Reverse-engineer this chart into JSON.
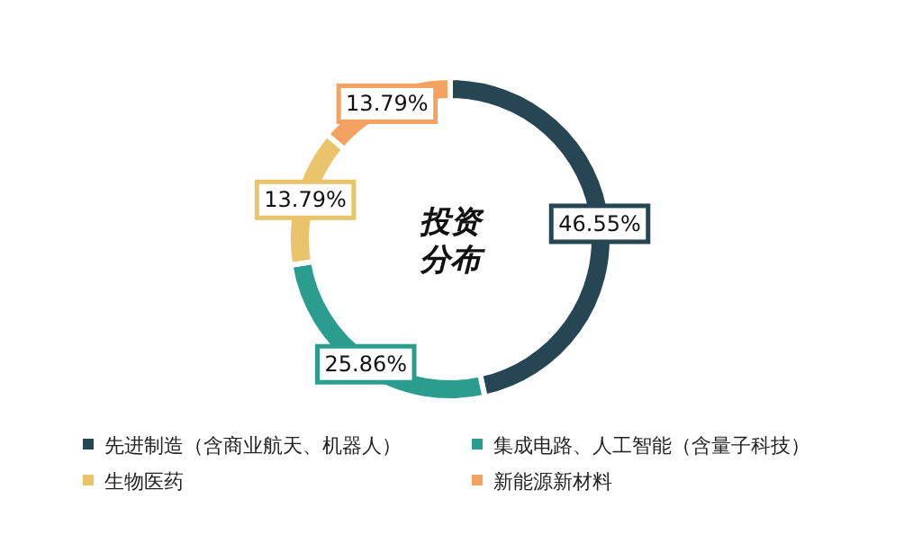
{
  "chart_data": {
    "type": "donut",
    "title": "投资分布",
    "categories": [
      "先进制造（含商业航天、机器人）",
      "集成电路、人工智能（含量子科技）",
      "生物医药",
      "新能源新材料"
    ],
    "values": [
      46.55,
      25.86,
      13.79,
      13.79
    ],
    "value_labels": [
      "46.55%",
      "25.86%",
      "13.79%",
      "13.79%"
    ],
    "colors": [
      "#264653",
      "#2a9d8f",
      "#e9c46a",
      "#f4a261"
    ],
    "legend": "bottom"
  }
}
